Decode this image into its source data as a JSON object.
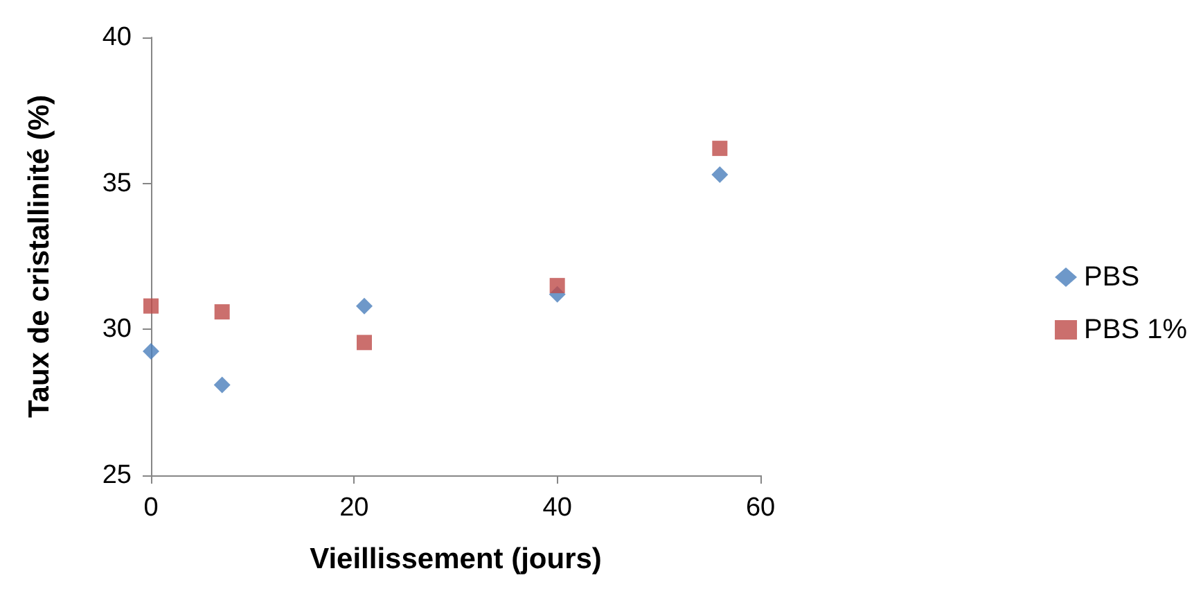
{
  "chart_data": {
    "type": "scatter",
    "xlabel": "Vieillissement (jours)",
    "ylabel": "Taux de cristallinité (%)",
    "x": [
      0,
      7,
      21,
      40,
      56
    ],
    "series": [
      {
        "name": "PBS",
        "color": "#4a7ebb",
        "marker": "diamond",
        "values": [
          29.25,
          28.1,
          30.8,
          31.2,
          35.3
        ]
      },
      {
        "name": "PBS 1%",
        "color": "#be4b48",
        "marker": "square",
        "values": [
          30.8,
          30.6,
          29.55,
          31.5,
          36.2
        ]
      }
    ],
    "xlim": [
      0,
      60
    ],
    "xticks": [
      0,
      20,
      40,
      60
    ],
    "ylim": [
      25,
      40
    ],
    "yticks": [
      25,
      30,
      35,
      40
    ],
    "grid": false,
    "legend": "right"
  }
}
